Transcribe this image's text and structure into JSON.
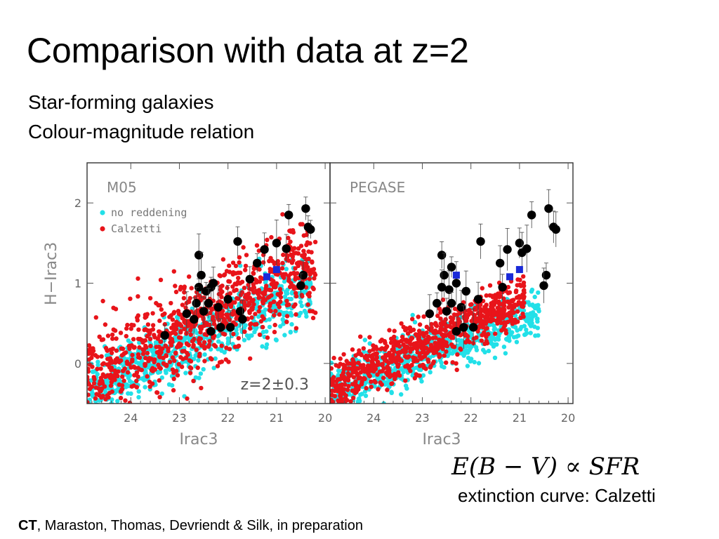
{
  "slide": {
    "title": "Comparison with data at z=2",
    "subtitle_line1": "Star-forming galaxies",
    "subtitle_line2": "Colour-magnitude relation",
    "formula": {
      "lhs": "E(B − V)",
      "op": "∝",
      "rhs": "SFR"
    },
    "extinction_note": "extinction curve: Calzetti",
    "citation_lead": "CT",
    "citation_rest": ", Maraston, Thomas, Devriendt & Silk, in preparation"
  },
  "colors": {
    "no_reddening": "#22e0e8",
    "calzetti": "#e8141a",
    "observed": "#000000",
    "observed_highlight": "#1a2ad8",
    "errorbar": "#444444"
  },
  "chart_data": [
    {
      "type": "scatter",
      "panel_label": "M05",
      "annotation": "z=2±0.3",
      "xlabel": "Irac3",
      "ylabel": "H−Irac3",
      "xlim": [
        24.9,
        19.9
      ],
      "ylim": [
        -0.5,
        2.5
      ],
      "x_inverted": true,
      "xticks": [
        24,
        23,
        22,
        21,
        20
      ],
      "xtick_labels": [
        "24",
        "23",
        "22",
        "21",
        "20"
      ],
      "yticks": [
        0,
        1,
        2
      ],
      "ytick_labels": [
        "0",
        "1",
        "2"
      ],
      "legend": {
        "placement": "top-left",
        "entries": [
          {
            "label": "no reddening",
            "color_key": "no_reddening"
          },
          {
            "label": "Calzetti",
            "color_key": "calzetti"
          }
        ]
      },
      "model_clouds": [
        {
          "name": "no reddening",
          "color_key": "no_reddening",
          "n_points": 750,
          "x_range": [
            24.9,
            20.3
          ],
          "trend": {
            "y_at_24": -0.12,
            "slope_per_mag": 0.3
          },
          "scatter": 0.2
        },
        {
          "name": "Calzetti",
          "color_key": "calzetti",
          "n_points": 900,
          "x_range": [
            24.9,
            20.2
          ],
          "trend": {
            "y_at_24": 0.05,
            "slope_per_mag": 0.32
          },
          "scatter": 0.28
        }
      ],
      "observed_points": [
        {
          "x": 23.3,
          "y": 0.35
        },
        {
          "x": 22.6,
          "y": 1.35
        },
        {
          "x": 22.55,
          "y": 1.1
        },
        {
          "x": 22.6,
          "y": 0.95
        },
        {
          "x": 22.45,
          "y": 0.9
        },
        {
          "x": 22.35,
          "y": 0.95
        },
        {
          "x": 22.3,
          "y": 1.0
        },
        {
          "x": 22.65,
          "y": 0.75
        },
        {
          "x": 22.5,
          "y": 0.65
        },
        {
          "x": 22.4,
          "y": 0.75
        },
        {
          "x": 22.2,
          "y": 0.7
        },
        {
          "x": 22.0,
          "y": 0.8
        },
        {
          "x": 22.15,
          "y": 0.45
        },
        {
          "x": 22.35,
          "y": 0.4
        },
        {
          "x": 21.95,
          "y": 0.45
        },
        {
          "x": 21.75,
          "y": 0.65
        },
        {
          "x": 22.85,
          "y": 0.62
        },
        {
          "x": 22.7,
          "y": 0.55
        },
        {
          "x": 21.8,
          "y": 1.52
        },
        {
          "x": 21.4,
          "y": 1.25
        },
        {
          "x": 21.25,
          "y": 1.42
        },
        {
          "x": 21.0,
          "y": 1.5
        },
        {
          "x": 20.8,
          "y": 1.43
        },
        {
          "x": 20.75,
          "y": 1.85
        },
        {
          "x": 20.4,
          "y": 1.93
        },
        {
          "x": 20.35,
          "y": 1.7
        },
        {
          "x": 20.3,
          "y": 1.67
        },
        {
          "x": 20.45,
          "y": 1.1
        },
        {
          "x": 20.5,
          "y": 0.97
        },
        {
          "x": 21.55,
          "y": 1.05
        },
        {
          "x": 21.7,
          "y": 0.55
        }
      ],
      "highlighted_points": [
        {
          "x": 21.2,
          "y": 1.08
        },
        {
          "x": 21.0,
          "y": 1.17
        }
      ]
    },
    {
      "type": "scatter",
      "panel_label": "PEGASE",
      "annotation": "",
      "xlabel": "Irac3",
      "ylabel": "",
      "xlim": [
        24.9,
        19.9
      ],
      "ylim": [
        -0.5,
        2.5
      ],
      "x_inverted": true,
      "xticks": [
        24,
        23,
        22,
        21,
        20
      ],
      "xtick_labels": [
        "24",
        "23",
        "22",
        "21",
        "20"
      ],
      "yticks": [
        0,
        1,
        2
      ],
      "ytick_labels": [
        "",
        "",
        ""
      ],
      "model_clouds": [
        {
          "name": "no reddening",
          "color_key": "no_reddening",
          "n_points": 700,
          "x_range": [
            24.9,
            20.6
          ],
          "trend": {
            "y_at_24": -0.12,
            "slope_per_mag": 0.22
          },
          "scatter": 0.16
        },
        {
          "name": "Calzetti",
          "color_key": "calzetti",
          "n_points": 800,
          "x_range": [
            24.9,
            20.9
          ],
          "trend": {
            "y_at_24": -0.05,
            "slope_per_mag": 0.28
          },
          "scatter": 0.16
        }
      ],
      "observed_points": [
        {
          "x": 22.6,
          "y": 1.35
        },
        {
          "x": 22.55,
          "y": 1.1
        },
        {
          "x": 22.4,
          "y": 1.2
        },
        {
          "x": 22.6,
          "y": 0.95
        },
        {
          "x": 22.45,
          "y": 0.92
        },
        {
          "x": 22.3,
          "y": 1.0
        },
        {
          "x": 22.7,
          "y": 0.75
        },
        {
          "x": 22.5,
          "y": 0.65
        },
        {
          "x": 22.4,
          "y": 0.75
        },
        {
          "x": 22.2,
          "y": 0.7
        },
        {
          "x": 22.1,
          "y": 0.9
        },
        {
          "x": 22.15,
          "y": 0.45
        },
        {
          "x": 22.3,
          "y": 0.4
        },
        {
          "x": 21.95,
          "y": 0.45
        },
        {
          "x": 21.85,
          "y": 0.8
        },
        {
          "x": 22.85,
          "y": 0.62
        },
        {
          "x": 21.8,
          "y": 1.52
        },
        {
          "x": 21.4,
          "y": 1.25
        },
        {
          "x": 21.25,
          "y": 1.42
        },
        {
          "x": 21.0,
          "y": 1.5
        },
        {
          "x": 20.85,
          "y": 1.43
        },
        {
          "x": 20.75,
          "y": 1.85
        },
        {
          "x": 20.4,
          "y": 1.93
        },
        {
          "x": 20.3,
          "y": 1.7
        },
        {
          "x": 20.25,
          "y": 1.67
        },
        {
          "x": 20.45,
          "y": 1.1
        },
        {
          "x": 20.5,
          "y": 0.97
        },
        {
          "x": 21.35,
          "y": 0.95
        },
        {
          "x": 20.95,
          "y": 1.38
        }
      ],
      "highlighted_points": [
        {
          "x": 22.3,
          "y": 1.1
        },
        {
          "x": 21.2,
          "y": 1.08
        },
        {
          "x": 21.0,
          "y": 1.17
        }
      ]
    }
  ]
}
